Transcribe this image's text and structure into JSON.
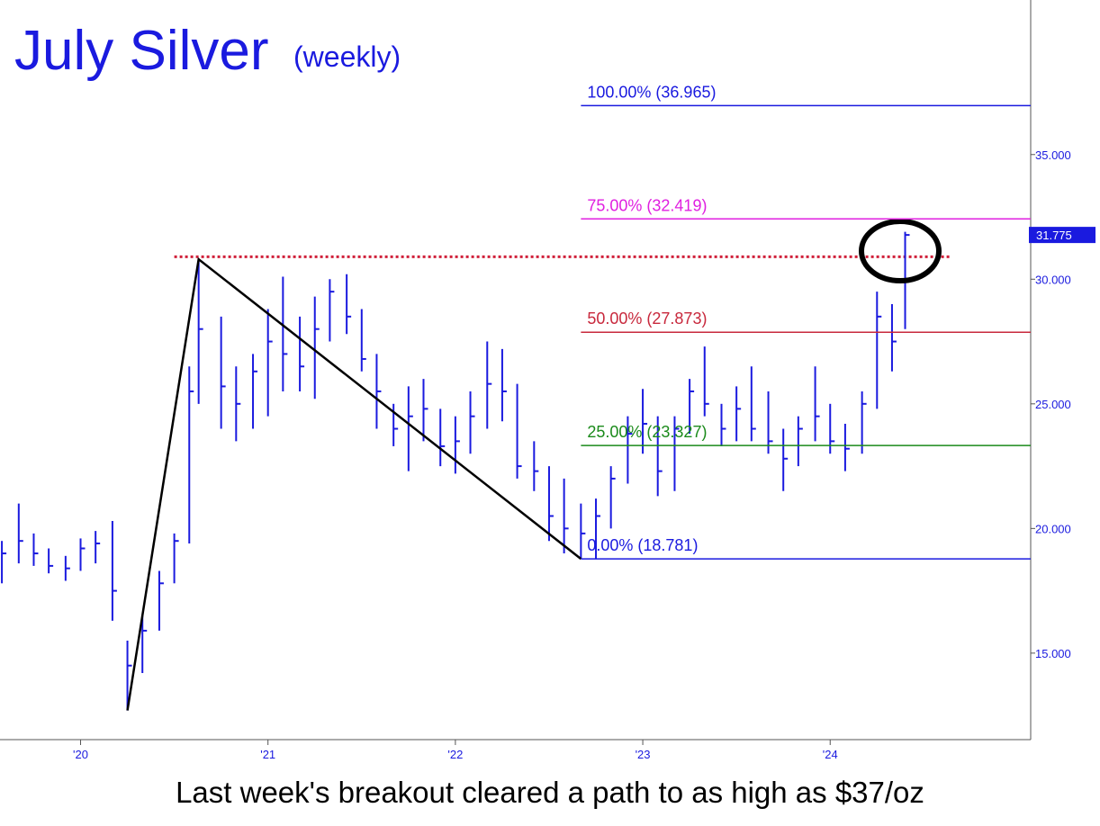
{
  "chart_data": {
    "type": "ohlc",
    "title": "July Silver",
    "subtitle": "(weekly)",
    "caption": "Last week's breakout cleared a path to as high as $37/oz",
    "color": "#1a1adf",
    "xlim": [
      2019.57,
      2025.07
    ],
    "xticks": [
      {
        "value": 2020,
        "label": "'20"
      },
      {
        "value": 2021,
        "label": "'21"
      },
      {
        "value": 2022,
        "label": "'22"
      },
      {
        "value": 2023,
        "label": "'23"
      },
      {
        "value": 2024,
        "label": "'24"
      }
    ],
    "ylim": [
      11.53,
      41.2
    ],
    "yticks": [
      {
        "value": 15,
        "label": "15.000"
      },
      {
        "value": 20,
        "label": "20.000"
      },
      {
        "value": 25,
        "label": "25.000"
      },
      {
        "value": 30,
        "label": "30.000"
      },
      {
        "value": 35,
        "label": "35.000"
      }
    ],
    "x": [
      2019.58,
      2019.67,
      2019.75,
      2019.83,
      2019.92,
      2020.0,
      2020.08,
      2020.17,
      2020.25,
      2020.33,
      2020.42,
      2020.5,
      2020.58,
      2020.63,
      2020.75,
      2020.83,
      2020.92,
      2021.0,
      2021.08,
      2021.17,
      2021.25,
      2021.33,
      2021.42,
      2021.5,
      2021.58,
      2021.67,
      2021.75,
      2021.83,
      2021.92,
      2022.0,
      2022.08,
      2022.17,
      2022.25,
      2022.33,
      2022.42,
      2022.5,
      2022.58,
      2022.67,
      2022.75,
      2022.83,
      2022.92,
      2023.0,
      2023.08,
      2023.17,
      2023.25,
      2023.33,
      2023.42,
      2023.5,
      2023.58,
      2023.67,
      2023.75,
      2023.83,
      2023.92,
      2024.0,
      2024.08,
      2024.17,
      2024.25,
      2024.33,
      2024.4
    ],
    "high": [
      19.5,
      21.0,
      19.8,
      19.2,
      18.9,
      19.6,
      19.9,
      20.3,
      15.5,
      16.5,
      18.3,
      19.8,
      26.5,
      30.8,
      28.5,
      26.5,
      27.0,
      28.8,
      30.1,
      28.5,
      29.3,
      30.0,
      30.2,
      28.8,
      27.0,
      25.0,
      25.7,
      26.0,
      24.8,
      24.5,
      25.5,
      27.5,
      27.2,
      25.8,
      23.5,
      22.5,
      22.0,
      21.0,
      21.2,
      22.5,
      24.5,
      25.6,
      24.5,
      24.5,
      26.0,
      27.3,
      25.0,
      25.7,
      26.5,
      25.5,
      24.0,
      24.5,
      26.5,
      25.0,
      24.2,
      25.5,
      29.5,
      29.0,
      31.9
    ],
    "low": [
      17.8,
      18.6,
      18.5,
      18.2,
      17.9,
      18.3,
      18.6,
      16.3,
      12.7,
      14.2,
      15.9,
      17.8,
      19.4,
      25.0,
      24.0,
      23.5,
      24.0,
      24.5,
      25.5,
      25.5,
      25.2,
      27.5,
      27.8,
      26.3,
      24.0,
      23.3,
      22.3,
      23.5,
      22.5,
      22.2,
      23.0,
      24.0,
      24.3,
      22.0,
      21.5,
      19.5,
      19.0,
      18.781,
      18.8,
      20.0,
      21.8,
      23.0,
      21.3,
      21.5,
      23.8,
      24.5,
      23.3,
      23.5,
      23.5,
      23.0,
      21.5,
      22.5,
      23.5,
      23.0,
      22.3,
      23.0,
      24.8,
      26.3,
      28.0
    ],
    "close": [
      19.0,
      19.5,
      19.0,
      18.5,
      18.4,
      19.2,
      19.4,
      17.5,
      14.5,
      15.9,
      17.8,
      19.5,
      25.5,
      28.0,
      25.7,
      25.0,
      26.3,
      27.5,
      27.0,
      26.5,
      28.0,
      29.5,
      28.5,
      26.8,
      25.5,
      24.0,
      24.5,
      24.8,
      23.3,
      23.5,
      24.5,
      25.8,
      25.5,
      22.5,
      22.3,
      20.5,
      20.0,
      19.8,
      20.5,
      22.0,
      23.8,
      24.2,
      22.3,
      24.0,
      25.5,
      25.0,
      24.0,
      24.8,
      24.0,
      23.5,
      22.8,
      24.0,
      24.5,
      23.5,
      23.2,
      25.0,
      28.5,
      27.5,
      31.775
    ],
    "fib_levels": [
      {
        "label": "100.00% (36.965)",
        "value": 36.965,
        "color": "#1a1adf"
      },
      {
        "label": "75.00% (32.419)",
        "value": 32.419,
        "color": "#e020e0"
      },
      {
        "label": "50.00% (27.873)",
        "value": 27.873,
        "color": "#c8283c"
      },
      {
        "label": "25.00% (23.327)",
        "value": 23.327,
        "color": "#1a8a1a"
      },
      {
        "label": "0.00% (18.781)",
        "value": 18.781,
        "color": "#1a1adf"
      }
    ],
    "swing_points": {
      "x": [
        2020.25,
        2020.63,
        2022.67
      ],
      "y": [
        12.7,
        30.8,
        18.781
      ]
    },
    "resistance": {
      "value": 30.9,
      "x": [
        2020.5,
        2024.64
      ],
      "color": "#d0203a"
    }
  }
}
